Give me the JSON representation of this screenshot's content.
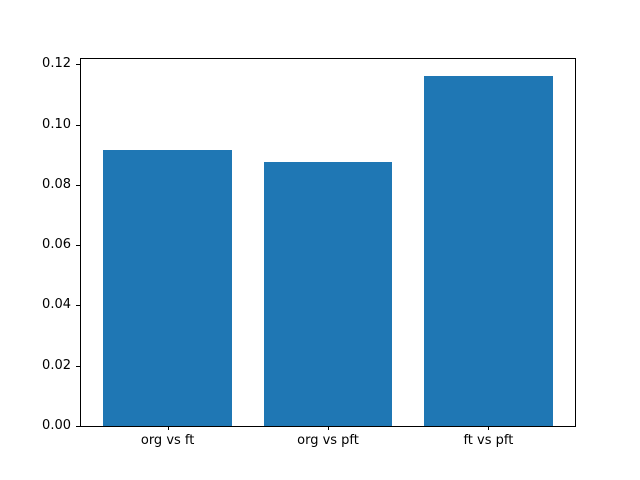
{
  "chart_data": {
    "type": "bar",
    "title": "",
    "xlabel": "",
    "ylabel": "",
    "categories": [
      "org vs ft",
      "org vs pft",
      "ft vs pft"
    ],
    "values": [
      0.0915,
      0.0875,
      0.1161
    ],
    "bar_color": "#1f77b4",
    "bar_width": 0.8,
    "xlim": [
      -0.54,
      2.54
    ],
    "ylim": [
      0,
      0.1218
    ],
    "yticks": [
      0.0,
      0.02,
      0.04,
      0.06,
      0.08,
      0.1,
      0.12
    ],
    "ytick_decimals": 2,
    "grid": false,
    "legend": null,
    "background_color": "#ffffff",
    "spine_color": "#000000"
  }
}
